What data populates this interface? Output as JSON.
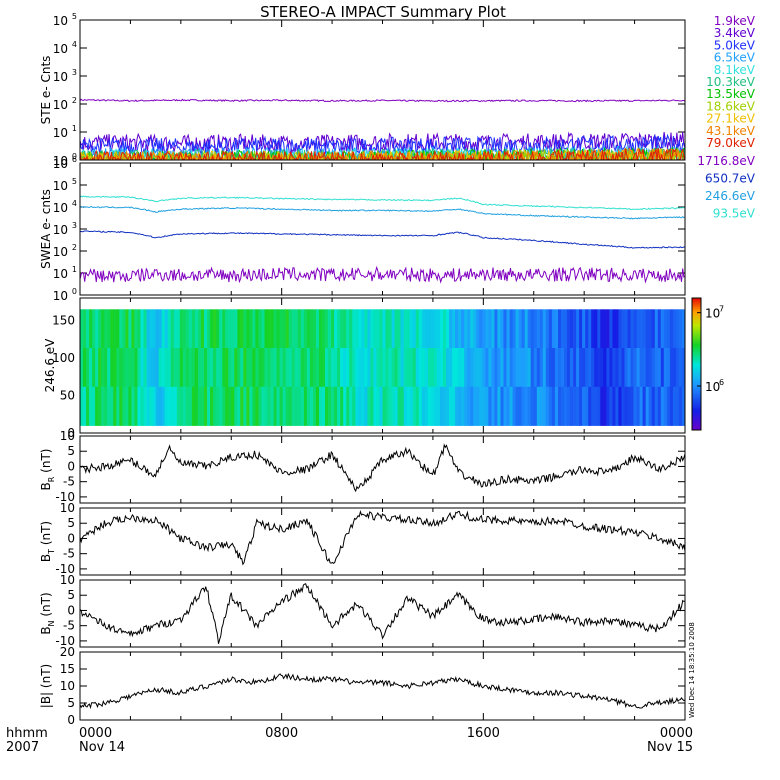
{
  "title": "STEREO-A IMPACT Summary Plot",
  "side_stamp": "Wed Dec 14 18:35:10 2008",
  "time_axis": {
    "label_top": "hhmm",
    "label_bottom": "2007",
    "ticks": [
      {
        "hour": 0,
        "top": "0000",
        "bottom": "Nov 14"
      },
      {
        "hour": 8,
        "top": "0800",
        "bottom": ""
      },
      {
        "hour": 16,
        "top": "1600",
        "bottom": ""
      },
      {
        "hour": 24,
        "top": "0000",
        "bottom": "Nov 15"
      }
    ],
    "xlim_hours": [
      0,
      24
    ]
  },
  "chart_data": [
    {
      "type": "line",
      "ylabel": "STE e- Cnts",
      "yscale": "log",
      "ylim": [
        1,
        100000
      ],
      "yticks": [
        {
          "value": 1,
          "base": "10",
          "exp": "0"
        },
        {
          "value": 10,
          "base": "10",
          "exp": "1"
        },
        {
          "value": 100,
          "base": "10",
          "exp": "2"
        },
        {
          "value": 1000,
          "base": "10",
          "exp": "3"
        },
        {
          "value": 10000,
          "base": "10",
          "exp": "4"
        },
        {
          "value": 100000,
          "base": "10",
          "exp": "5"
        }
      ],
      "x_hours": [
        0,
        2,
        4,
        6,
        8,
        10,
        12,
        14,
        16,
        18,
        20,
        22,
        24
      ],
      "series": [
        {
          "name": "1.9keV",
          "color": "#8000c0",
          "values": [
            140,
            130,
            138,
            132,
            135,
            130,
            133,
            128,
            130,
            132,
            129,
            131,
            135
          ]
        },
        {
          "name": "3.4keV",
          "color": "#6000d0",
          "values": [
            4,
            4.2,
            3.8,
            4.1,
            3.9,
            4,
            4.3,
            4.5,
            4.2,
            4.4,
            4.6,
            4.8,
            5
          ]
        },
        {
          "name": "5.0keV",
          "color": "#2030ff",
          "values": [
            3,
            3.1,
            2.9,
            3,
            3.2,
            3,
            3.1,
            3.3,
            3.2,
            3.4,
            3.5,
            3.6,
            3.8
          ]
        },
        {
          "name": "6.5keV",
          "color": "#20a0ff",
          "values": [
            1.3,
            1.4,
            1.3,
            1.4,
            1.3,
            1.4,
            1.3,
            1.4,
            1.4,
            1.5,
            1.5,
            1.6,
            1.6
          ]
        },
        {
          "name": "8.1keV",
          "color": "#30e0e0",
          "values": [
            1.2,
            1.2,
            1.3,
            1.2,
            1.3,
            1.2,
            1.3,
            1.3,
            1.3,
            1.4,
            1.4,
            1.4,
            1.5
          ]
        },
        {
          "name": "10.3keV",
          "color": "#20c080",
          "values": [
            1.1,
            1.1,
            1.2,
            1.1,
            1.2,
            1.1,
            1.2,
            1.2,
            1.2,
            1.3,
            1.3,
            1.4,
            1.4
          ]
        },
        {
          "name": "13.5keV",
          "color": "#00c000",
          "values": [
            1,
            1.1,
            1,
            1.1,
            1,
            1.1,
            1.1,
            1.1,
            1.2,
            1.3,
            1.3,
            1.3,
            1.4
          ]
        },
        {
          "name": "18.6keV",
          "color": "#a0d000",
          "values": [
            1,
            1,
            1,
            1,
            1,
            1,
            1,
            1,
            1.1,
            1.2,
            1.2,
            1.3,
            1.3
          ]
        },
        {
          "name": "27.1keV",
          "color": "#f0c000",
          "values": [
            1,
            1,
            1,
            1,
            1,
            1,
            1,
            1,
            1.1,
            1.1,
            1.2,
            1.2,
            1.3
          ]
        },
        {
          "name": "43.1keV",
          "color": "#f08000",
          "values": [
            1,
            1,
            1,
            1,
            1,
            1,
            1,
            1,
            1,
            1.1,
            1.2,
            1.3,
            1.3
          ]
        },
        {
          "name": "79.0keV",
          "color": "#e02000",
          "values": [
            1,
            1,
            1,
            1,
            1,
            1,
            1,
            1,
            1,
            1.1,
            1.2,
            1.3,
            1.3
          ]
        }
      ]
    },
    {
      "type": "line",
      "ylabel": "SWEA e- cnts",
      "yscale": "log",
      "ylim": [
        1,
        1000000
      ],
      "yticks": [
        {
          "value": 1,
          "base": "10",
          "exp": "0"
        },
        {
          "value": 10,
          "base": "10",
          "exp": "1"
        },
        {
          "value": 100,
          "base": "10",
          "exp": "2"
        },
        {
          "value": 1000,
          "base": "10",
          "exp": "3"
        },
        {
          "value": 10000,
          "base": "10",
          "exp": "4"
        },
        {
          "value": 100000,
          "base": "10",
          "exp": "5"
        },
        {
          "value": 1000000,
          "base": "10",
          "exp": "6"
        }
      ],
      "x_hours": [
        0,
        2,
        3,
        4,
        6,
        8,
        10,
        12,
        14,
        15,
        16,
        18,
        20,
        22,
        24
      ],
      "series": [
        {
          "name": "1716.8eV",
          "color": "#8000c0",
          "values": [
            8,
            7,
            9,
            8,
            8,
            9,
            8,
            9,
            8,
            8,
            9,
            8,
            9,
            8,
            8
          ]
        },
        {
          "name": "650.7eV",
          "color": "#1030c0",
          "values": [
            800,
            700,
            400,
            600,
            650,
            600,
            550,
            500,
            500,
            700,
            400,
            300,
            200,
            140,
            150
          ]
        },
        {
          "name": "246.6eV",
          "color": "#20a0e0",
          "values": [
            10000,
            9500,
            6000,
            8000,
            9000,
            8000,
            7000,
            7000,
            6500,
            8000,
            5000,
            4000,
            3500,
            3000,
            3500
          ]
        },
        {
          "name": "93.5eV",
          "color": "#30e0d0",
          "values": [
            30000,
            28000,
            18000,
            25000,
            27000,
            24000,
            22000,
            21000,
            20000,
            25000,
            13000,
            11000,
            9500,
            8000,
            9000
          ]
        }
      ]
    },
    {
      "type": "heatmap",
      "ylabel": "246.6 eV",
      "ylim": [
        0,
        180
      ],
      "yticks": [
        0,
        50,
        100,
        150
      ],
      "colorbar": {
        "scale": "log",
        "ticks": [
          {
            "base": "10",
            "exp": "6"
          },
          {
            "base": "10",
            "exp": "7"
          }
        ]
      },
      "x_hours": [
        0,
        2,
        3,
        4,
        6,
        8,
        10,
        11,
        12,
        14,
        16,
        18,
        20,
        21,
        22,
        24
      ],
      "values_log": [
        6.45,
        6.5,
        6.2,
        6.45,
        6.5,
        6.5,
        6.45,
        6.3,
        6.35,
        6.3,
        6.05,
        6.0,
        5.85,
        5.7,
        5.9,
        5.85
      ]
    },
    {
      "type": "line",
      "ylabel": "B_R (nT)",
      "ylabel_main": "B",
      "ylabel_sub": "R",
      "ylabel_unit": "(nT)",
      "ylim": [
        -12,
        10
      ],
      "yticks": [
        -10,
        -5,
        0,
        5,
        10
      ],
      "x_hours": [
        0,
        1,
        2,
        3,
        3.5,
        4,
        5,
        6,
        7,
        8,
        9,
        10,
        11,
        12,
        13,
        14,
        14.5,
        15,
        16,
        17,
        18,
        19,
        20,
        21,
        22,
        23,
        24
      ],
      "values": [
        -1,
        0,
        2,
        -3,
        6,
        1,
        0,
        3,
        4,
        -2,
        -1,
        4,
        -8,
        2,
        5,
        -3,
        7,
        -2,
        -6,
        -4,
        -5,
        -3,
        -1,
        -2,
        3,
        -1,
        3
      ]
    },
    {
      "type": "line",
      "ylabel": "B_T (nT)",
      "ylabel_main": "B",
      "ylabel_sub": "T",
      "ylabel_unit": "(nT)",
      "ylim": [
        -12,
        10
      ],
      "yticks": [
        -10,
        -5,
        0,
        5,
        10
      ],
      "x_hours": [
        0,
        1,
        2,
        3,
        4,
        5,
        6,
        6.5,
        7,
        8,
        9,
        10,
        11,
        12,
        13,
        14,
        15,
        16,
        17,
        18,
        19,
        20,
        21,
        22,
        23,
        24
      ],
      "values": [
        0,
        5,
        7,
        6,
        0,
        -3,
        -2,
        -8,
        5,
        3,
        6,
        -9,
        8,
        7,
        6,
        5,
        8,
        6,
        6,
        5,
        6,
        4,
        3,
        2,
        0,
        -3
      ]
    },
    {
      "type": "line",
      "ylabel": "B_N (nT)",
      "ylabel_main": "B",
      "ylabel_sub": "N",
      "ylabel_unit": "(nT)",
      "ylim": [
        -12,
        10
      ],
      "yticks": [
        -10,
        -5,
        0,
        5,
        10
      ],
      "x_hours": [
        0,
        1,
        2,
        3,
        4,
        5,
        5.5,
        6,
        7,
        8,
        9,
        10,
        11,
        12,
        13,
        14,
        15,
        16,
        17,
        18,
        19,
        20,
        21,
        22,
        23,
        24
      ],
      "values": [
        0,
        -5,
        -8,
        -5,
        -3,
        8,
        -10,
        5,
        -5,
        3,
        8,
        -5,
        2,
        -8,
        4,
        -2,
        5,
        -3,
        -4,
        -3,
        -2,
        -4,
        -3,
        -5,
        -6,
        3
      ]
    },
    {
      "type": "line",
      "ylabel": "|B| (nT)",
      "ylabel_main": "|B|",
      "ylabel_sub": "",
      "ylabel_unit": "(nT)",
      "ylim": [
        0,
        20
      ],
      "yticks": [
        0,
        5,
        10,
        15,
        20
      ],
      "x_hours": [
        0,
        1,
        2,
        3,
        4,
        5,
        6,
        7,
        8,
        9,
        10,
        11,
        12,
        13,
        14,
        15,
        16,
        17,
        18,
        19,
        20,
        21,
        22,
        23,
        24
      ],
      "values": [
        4,
        5,
        7,
        9,
        8,
        10,
        12,
        11,
        13,
        12,
        12,
        11,
        11,
        10,
        11,
        12,
        10,
        9,
        8,
        8,
        7,
        6,
        4,
        5,
        6
      ]
    }
  ]
}
